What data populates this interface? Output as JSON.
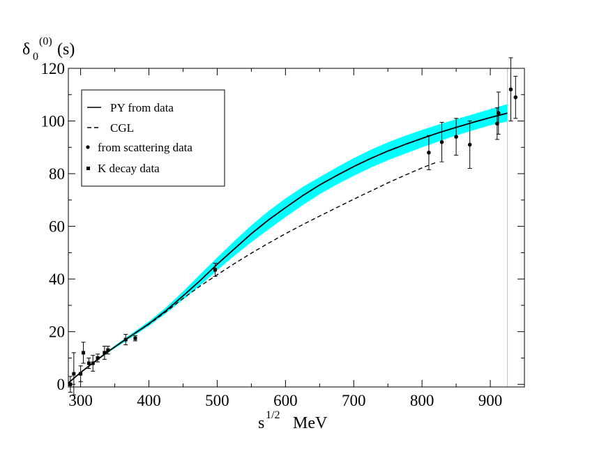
{
  "chart_data": {
    "type": "line",
    "title": "",
    "ylabel": {
      "base": "δ",
      "sub": "0",
      "sup": "(0)",
      "tail": "(s)"
    },
    "xlabel": {
      "base": "s",
      "sup": "1/2",
      "tail": "MeV"
    },
    "xlim": [
      282,
      950
    ],
    "ylim": [
      -1,
      120
    ],
    "xticks": [
      300,
      400,
      500,
      600,
      700,
      800,
      900
    ],
    "yticks": [
      0,
      20,
      40,
      60,
      80,
      100,
      120
    ],
    "xtick_labels": [
      "300",
      "400",
      "500",
      "600",
      "700",
      "800",
      "900"
    ],
    "ytick_labels": [
      "0",
      "20",
      "40",
      "60",
      "80",
      "100",
      "120"
    ],
    "series": [
      {
        "name": "PY from data",
        "style": "solid",
        "x": [
          282,
          300,
          320,
          340,
          360,
          380,
          400,
          425,
          450,
          475,
          500,
          525,
          550,
          575,
          600,
          625,
          650,
          675,
          700,
          725,
          750,
          775,
          800,
          825,
          850,
          875,
          900,
          925
        ],
        "y": [
          0.5,
          4.5,
          8.5,
          12.4,
          16.0,
          19.5,
          23.0,
          28.0,
          33.6,
          39.4,
          45.6,
          51.4,
          57.2,
          62.4,
          67.1,
          71.6,
          75.7,
          79.3,
          82.7,
          85.8,
          88.6,
          91.1,
          93.4,
          95.6,
          97.6,
          99.5,
          101.3,
          103.0
        ]
      },
      {
        "name": "CGL",
        "style": "dashed",
        "x": [
          282,
          300,
          320,
          340,
          360,
          380,
          400,
          425,
          450,
          475,
          500,
          525,
          550,
          575,
          600,
          625,
          650,
          675,
          700,
          725,
          750,
          775,
          800,
          820
        ],
        "y": [
          0.5,
          4.5,
          8.5,
          12.4,
          16.0,
          19.5,
          22.8,
          27.6,
          32.6,
          37.3,
          41.6,
          45.8,
          49.8,
          53.6,
          57.2,
          60.6,
          63.9,
          67.1,
          70.3,
          73.4,
          76.5,
          79.4,
          82.2,
          84.2
        ]
      }
    ],
    "error_band": {
      "name": "PY band",
      "color": "#00ffff",
      "x": [
        282,
        300,
        320,
        340,
        360,
        380,
        400,
        425,
        450,
        475,
        500,
        525,
        550,
        575,
        600,
        625,
        650,
        675,
        700,
        725,
        750,
        775,
        800,
        825,
        850,
        875,
        900,
        925
      ],
      "y_low": [
        0.5,
        4.3,
        8.2,
        12.0,
        15.4,
        18.8,
        22.2,
        27.0,
        32.2,
        37.6,
        43.3,
        48.8,
        54.0,
        58.8,
        63.5,
        68.0,
        72.2,
        75.9,
        79.2,
        82.3,
        85.1,
        87.6,
        90.0,
        92.3,
        94.5,
        96.5,
        98.4,
        99.8
      ],
      "y_high": [
        0.5,
        4.7,
        8.8,
        12.8,
        16.6,
        20.3,
        23.9,
        29.2,
        35.3,
        41.8,
        48.2,
        54.4,
        60.4,
        65.8,
        70.6,
        74.9,
        78.7,
        82.4,
        85.9,
        89.1,
        91.9,
        94.4,
        96.6,
        98.7,
        100.7,
        102.6,
        104.5,
        106.4
      ]
    },
    "scattering_data": {
      "name": "from scattering data",
      "marker": "circle",
      "points": [
        {
          "x": 810,
          "y": 88,
          "err": 6.5
        },
        {
          "x": 829,
          "y": 92,
          "err": 7.5
        },
        {
          "x": 850,
          "y": 94,
          "err": 7
        },
        {
          "x": 870,
          "y": 91,
          "err": 9
        },
        {
          "x": 910,
          "y": 99,
          "err": 6
        },
        {
          "x": 912,
          "y": 103,
          "err": 8
        },
        {
          "x": 930,
          "y": 112,
          "err": 12
        },
        {
          "x": 937,
          "y": 109,
          "err": 8
        }
      ]
    },
    "kdecay_data": {
      "name": "K decay data",
      "marker": "square",
      "points": [
        {
          "x": 285,
          "y": 0,
          "err": 3
        },
        {
          "x": 290,
          "y": 4,
          "err": 8
        },
        {
          "x": 300,
          "y": 4,
          "err": 3
        },
        {
          "x": 304,
          "y": 12,
          "err": 4
        },
        {
          "x": 312,
          "y": 8,
          "err": 2
        },
        {
          "x": 318,
          "y": 8,
          "err": 3
        },
        {
          "x": 325,
          "y": 10,
          "err": 1.5
        },
        {
          "x": 335,
          "y": 12,
          "err": 2.5
        },
        {
          "x": 340,
          "y": 13,
          "err": 1.5
        },
        {
          "x": 366,
          "y": 17,
          "err": 2
        },
        {
          "x": 380,
          "y": 17.5,
          "err": 1
        },
        {
          "x": 497,
          "y": 43.5,
          "err": 2.5
        }
      ]
    },
    "legend": {
      "placement": "top-left",
      "entries": [
        {
          "label": "PY from data",
          "symbol": "solid-line"
        },
        {
          "label": "CGL",
          "symbol": "dashed-line"
        },
        {
          "label": "from scattering data",
          "symbol": "circle"
        },
        {
          "label": "K decay data",
          "symbol": "square"
        }
      ]
    },
    "vertical_line": {
      "x": 925,
      "color": "#9bd4d4"
    }
  }
}
